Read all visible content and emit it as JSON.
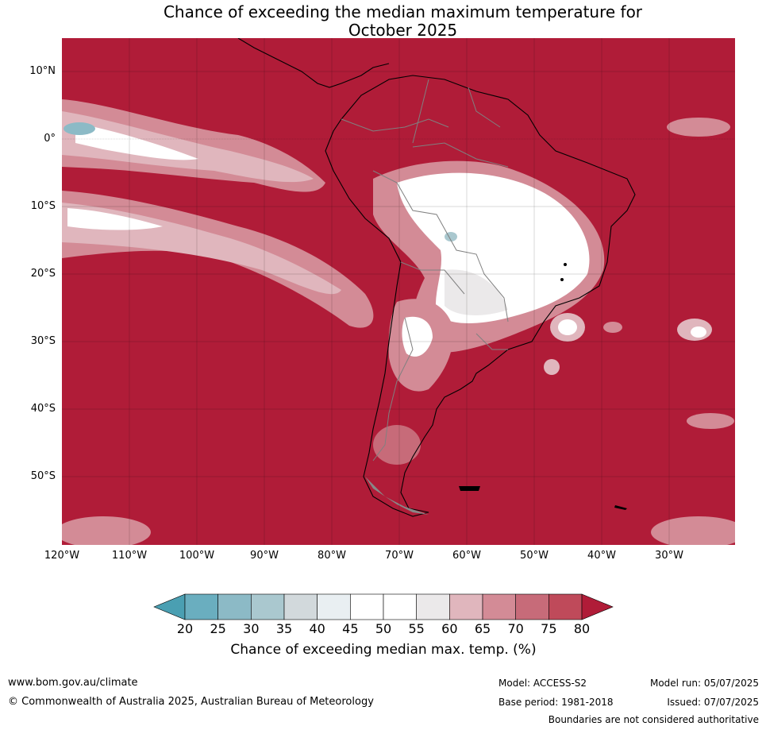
{
  "title": {
    "line1": "Chance of exceeding the median maximum temperature for",
    "line2": "October 2025"
  },
  "map": {
    "region": "South America",
    "variable": "chance of exceeding median maximum temperature",
    "lat_ticks": [
      "10°N",
      "0°",
      "10°S",
      "20°S",
      "30°S",
      "40°S",
      "50°S"
    ],
    "lon_ticks": [
      "120°W",
      "110°W",
      "100°W",
      "90°W",
      "80°W",
      "70°W",
      "60°W",
      "50°W",
      "40°W",
      "30°W"
    ],
    "colors": {
      "background_high": "#b01c38",
      "land_border": "#000000",
      "country_border": "#808080"
    }
  },
  "colorbar": {
    "ticks": [
      "20",
      "25",
      "30",
      "35",
      "40",
      "45",
      "50",
      "55",
      "60",
      "65",
      "70",
      "75",
      "80"
    ],
    "colors": [
      "#4a9fb2",
      "#6aaebf",
      "#8cbac6",
      "#aac8cf",
      "#d2d9dc",
      "#e9eff2",
      "#ffffff",
      "#ffffff",
      "#ebe9ea",
      "#e0b6bd",
      "#d38b96",
      "#c76b79",
      "#bf4a5a",
      "#b01c38"
    ],
    "title": "Chance of exceeding median max. temp. (%)"
  },
  "footer": {
    "website": "www.bom.gov.au/climate",
    "copyright": "© Commonwealth of Australia 2025, Australian Bureau of Meteorology",
    "model": "Model: ACCESS-S2",
    "base_period": "Base period: 1981-2018",
    "model_run": "Model run: 05/07/2025",
    "issued": "Issued: 07/07/2025",
    "disclaimer": "Boundaries are not considered authoritative"
  }
}
